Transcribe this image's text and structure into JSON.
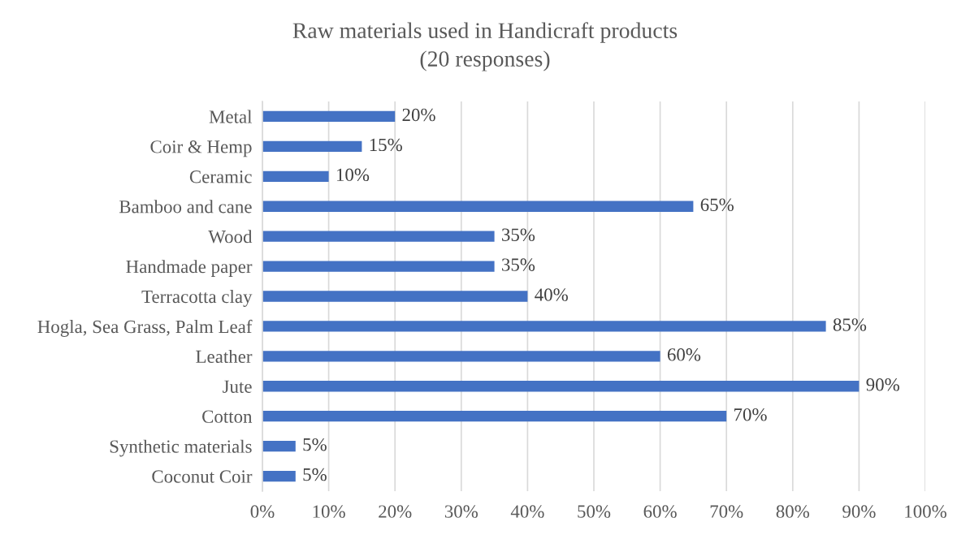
{
  "chart_data": {
    "type": "bar",
    "orientation": "horizontal",
    "title": "Raw materials used in Handicraft products",
    "subtitle": "(20 responses)",
    "categories": [
      "Metal",
      "Coir & Hemp",
      "Ceramic",
      "Bamboo and cane",
      "Wood",
      "Handmade paper",
      "Terracotta clay",
      "Hogla, Sea Grass, Palm Leaf",
      "Leather",
      "Jute",
      "Cotton",
      "Synthetic materials",
      "Coconut Coir"
    ],
    "values": [
      20,
      15,
      10,
      65,
      35,
      35,
      40,
      85,
      60,
      90,
      70,
      5,
      5
    ],
    "value_labels": [
      "20%",
      "15%",
      "10%",
      "65%",
      "35%",
      "35%",
      "40%",
      "85%",
      "60%",
      "90%",
      "70%",
      "5%",
      "5%"
    ],
    "color": "#4472c4",
    "xlim": [
      0,
      100
    ],
    "xticks": [
      {
        "value": 0,
        "label": "0%"
      },
      {
        "value": 10,
        "label": "10%"
      },
      {
        "value": 20,
        "label": "20%"
      },
      {
        "value": 30,
        "label": "30%"
      },
      {
        "value": 40,
        "label": "40%"
      },
      {
        "value": 50,
        "label": "50%"
      },
      {
        "value": 60,
        "label": "60%"
      },
      {
        "value": 70,
        "label": "70%"
      },
      {
        "value": 80,
        "label": "80%"
      },
      {
        "value": 90,
        "label": "90%"
      },
      {
        "value": 100,
        "label": "100%"
      }
    ],
    "grid": "x"
  }
}
